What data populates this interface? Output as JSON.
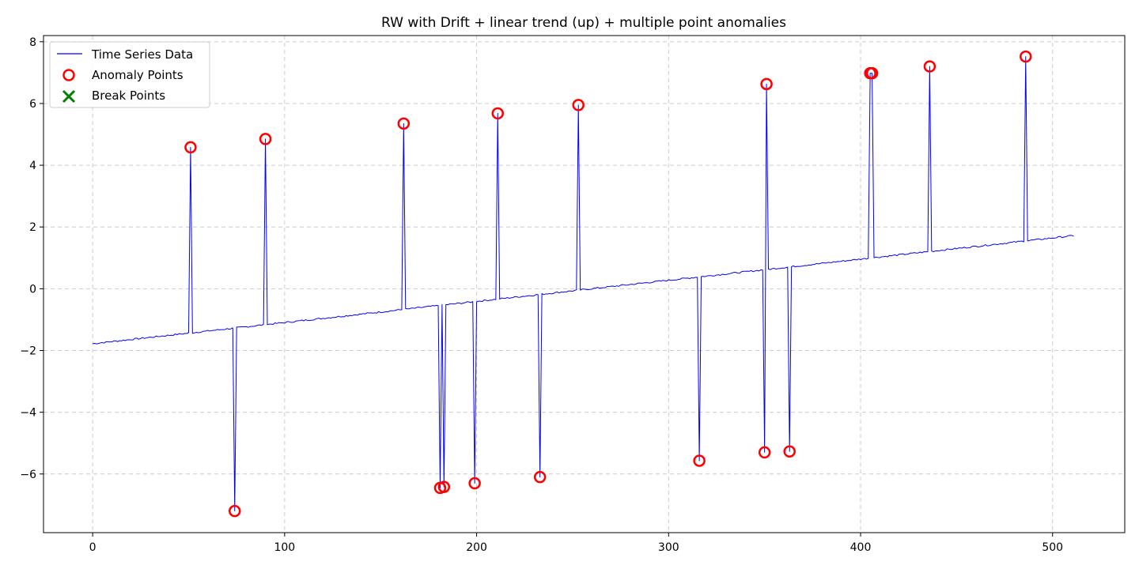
{
  "chart_data": {
    "type": "line",
    "title": "RW with Drift + linear trend (up) + multiple point anomalies",
    "xlabel": "",
    "ylabel": "",
    "xlim": [
      -25.6,
      537.6
    ],
    "ylim": [
      -7.9,
      8.2
    ],
    "xticks": [
      0,
      100,
      200,
      300,
      400,
      500
    ],
    "yticks": [
      -6,
      -4,
      -2,
      0,
      2,
      4,
      6,
      8
    ],
    "grid": true,
    "legend_position": "top-left",
    "colors": {
      "series": "#0000ff",
      "anomaly": "#ff0000",
      "break": "#008000",
      "grid": "#cccccc"
    },
    "series": [
      {
        "name": "Time Series Data",
        "trend_start": -1.78,
        "trend_end": 1.72,
        "n_points": 512
      }
    ],
    "anomalies": {
      "name": "Anomaly Points",
      "x": [
        51,
        74,
        90,
        162,
        181,
        183,
        199,
        211,
        233,
        253,
        316,
        350,
        351,
        363,
        405,
        406,
        436,
        486
      ],
      "y": [
        4.58,
        -7.2,
        4.85,
        5.35,
        -6.45,
        -6.42,
        -6.3,
        5.68,
        -6.1,
        5.95,
        -5.57,
        -5.3,
        6.63,
        -5.27,
        6.98,
        6.98,
        7.2,
        7.52
      ]
    },
    "breaks": {
      "name": "Break Points",
      "x": [],
      "y": []
    }
  }
}
